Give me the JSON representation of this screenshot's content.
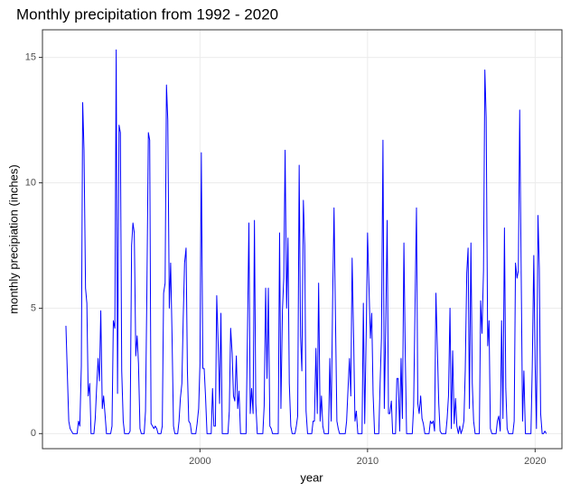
{
  "chart_data": {
    "type": "line",
    "title": "Monthly precipitation from 1992 - 2020",
    "x_label": "year",
    "y_label": "monthly precipiation (inches)",
    "xlim": [
      1990.6,
      2021.6
    ],
    "ylim": [
      -0.6,
      16.1
    ],
    "xticks": [
      2000,
      2010,
      2020
    ],
    "yticks": [
      0,
      5,
      10,
      15
    ],
    "grid": true,
    "x": [
      1992,
      1992.08,
      1992.17,
      1992.25,
      1992.33,
      1992.42,
      1992.5,
      1992.58,
      1992.67,
      1992.75,
      1992.83,
      1992.92,
      1993,
      1993.08,
      1993.17,
      1993.25,
      1993.33,
      1993.42,
      1993.5,
      1993.58,
      1993.67,
      1993.75,
      1993.83,
      1993.92,
      1994,
      1994.08,
      1994.17,
      1994.25,
      1994.33,
      1994.42,
      1994.5,
      1994.58,
      1994.67,
      1994.75,
      1994.83,
      1994.92,
      1995,
      1995.08,
      1995.17,
      1995.25,
      1995.33,
      1995.42,
      1995.5,
      1995.58,
      1995.67,
      1995.75,
      1995.83,
      1995.92,
      1996,
      1996.08,
      1996.17,
      1996.25,
      1996.33,
      1996.42,
      1996.5,
      1996.58,
      1996.67,
      1996.75,
      1996.83,
      1996.92,
      1997,
      1997.08,
      1997.17,
      1997.25,
      1997.33,
      1997.42,
      1997.5,
      1997.58,
      1997.67,
      1997.75,
      1997.83,
      1997.92,
      1998,
      1998.08,
      1998.17,
      1998.25,
      1998.33,
      1998.42,
      1998.5,
      1998.58,
      1998.67,
      1998.75,
      1998.83,
      1998.92,
      1999,
      1999.08,
      1999.17,
      1999.25,
      1999.33,
      1999.42,
      1999.5,
      1999.58,
      1999.67,
      1999.75,
      1999.83,
      1999.92,
      2000,
      2000.08,
      2000.17,
      2000.25,
      2000.33,
      2000.42,
      2000.5,
      2000.58,
      2000.67,
      2000.75,
      2000.83,
      2000.92,
      2001,
      2001.08,
      2001.17,
      2001.25,
      2001.33,
      2001.42,
      2001.5,
      2001.58,
      2001.67,
      2001.75,
      2001.83,
      2001.92,
      2002,
      2002.08,
      2002.17,
      2002.25,
      2002.33,
      2002.42,
      2002.5,
      2002.58,
      2002.67,
      2002.75,
      2002.83,
      2002.92,
      2003,
      2003.08,
      2003.17,
      2003.25,
      2003.33,
      2003.42,
      2003.5,
      2003.58,
      2003.67,
      2003.75,
      2003.83,
      2003.92,
      2004,
      2004.08,
      2004.17,
      2004.25,
      2004.33,
      2004.42,
      2004.5,
      2004.58,
      2004.67,
      2004.75,
      2004.83,
      2004.92,
      2005,
      2005.08,
      2005.17,
      2005.25,
      2005.33,
      2005.42,
      2005.5,
      2005.58,
      2005.67,
      2005.75,
      2005.83,
      2005.92,
      2006,
      2006.08,
      2006.17,
      2006.25,
      2006.33,
      2006.42,
      2006.5,
      2006.58,
      2006.67,
      2006.75,
      2006.83,
      2006.92,
      2007,
      2007.08,
      2007.17,
      2007.25,
      2007.33,
      2007.42,
      2007.5,
      2007.58,
      2007.67,
      2007.75,
      2007.83,
      2007.92,
      2008,
      2008.08,
      2008.17,
      2008.25,
      2008.33,
      2008.42,
      2008.5,
      2008.58,
      2008.67,
      2008.75,
      2008.83,
      2008.92,
      2009,
      2009.08,
      2009.17,
      2009.25,
      2009.33,
      2009.42,
      2009.5,
      2009.58,
      2009.67,
      2009.75,
      2009.83,
      2009.92,
      2010,
      2010.08,
      2010.17,
      2010.25,
      2010.33,
      2010.42,
      2010.5,
      2010.58,
      2010.67,
      2010.75,
      2010.83,
      2010.92,
      2011,
      2011.08,
      2011.17,
      2011.25,
      2011.33,
      2011.42,
      2011.5,
      2011.58,
      2011.67,
      2011.75,
      2011.83,
      2011.92,
      2012,
      2012.08,
      2012.17,
      2012.25,
      2012.33,
      2012.42,
      2012.5,
      2012.58,
      2012.67,
      2012.75,
      2012.83,
      2012.92,
      2013,
      2013.08,
      2013.17,
      2013.25,
      2013.33,
      2013.42,
      2013.5,
      2013.58,
      2013.67,
      2013.75,
      2013.83,
      2013.92,
      2014,
      2014.08,
      2014.17,
      2014.25,
      2014.33,
      2014.42,
      2014.5,
      2014.58,
      2014.67,
      2014.75,
      2014.83,
      2014.92,
      2015,
      2015.08,
      2015.17,
      2015.25,
      2015.33,
      2015.42,
      2015.5,
      2015.58,
      2015.67,
      2015.75,
      2015.83,
      2015.92,
      2016,
      2016.08,
      2016.17,
      2016.25,
      2016.33,
      2016.42,
      2016.5,
      2016.58,
      2016.67,
      2016.75,
      2016.83,
      2016.92,
      2017,
      2017.08,
      2017.17,
      2017.25,
      2017.33,
      2017.42,
      2017.5,
      2017.58,
      2017.67,
      2017.75,
      2017.83,
      2017.92,
      2018,
      2018.08,
      2018.17,
      2018.25,
      2018.33,
      2018.42,
      2018.5,
      2018.58,
      2018.67,
      2018.75,
      2018.83,
      2018.92,
      2019,
      2019.08,
      2019.17,
      2019.25,
      2019.33,
      2019.42,
      2019.5,
      2019.58,
      2019.67,
      2019.75,
      2019.83,
      2019.92,
      2020,
      2020.08,
      2020.17,
      2020.25,
      2020.33,
      2020.42,
      2020.5,
      2020.58,
      2020.67
    ],
    "series": [
      {
        "color": "#0000ff",
        "values": [
          4.3,
          2.5,
          0.5,
          0.2,
          0.1,
          0,
          0,
          0,
          0,
          0.5,
          0.3,
          2.7,
          13.2,
          11.3,
          5.8,
          5.2,
          1.5,
          2.0,
          0,
          0,
          0,
          0.6,
          1.8,
          3.0,
          2.1,
          4.9,
          1.0,
          1.5,
          0.8,
          0,
          0,
          0,
          0,
          0.3,
          4.5,
          4.2,
          15.3,
          1.6,
          12.3,
          12.0,
          2.5,
          0.5,
          0,
          0,
          0,
          0,
          0.1,
          7.5,
          8.4,
          8.0,
          3.1,
          3.9,
          2.8,
          0.2,
          0,
          0,
          0,
          0.9,
          5.6,
          12.0,
          11.7,
          0.4,
          0.3,
          0.2,
          0.3,
          0.2,
          0,
          0,
          0,
          0.3,
          5.6,
          6.0,
          13.9,
          12.5,
          5.0,
          6.8,
          4.0,
          0.3,
          0,
          0,
          0,
          0.5,
          1.4,
          2.0,
          4.6,
          6.8,
          7.4,
          2.5,
          0.5,
          0.4,
          0,
          0,
          0,
          0,
          0.4,
          1.0,
          2.8,
          11.2,
          2.6,
          2.6,
          1.5,
          0,
          0,
          0,
          0,
          1.8,
          0.3,
          0.3,
          5.5,
          3.7,
          1.2,
          4.8,
          0,
          0,
          0,
          0,
          0,
          0.9,
          4.2,
          3.2,
          1.5,
          1.3,
          3.1,
          1.0,
          1.7,
          0,
          0,
          0,
          0,
          0,
          3.8,
          8.4,
          0.8,
          1.8,
          0.8,
          8.5,
          1.2,
          0,
          0,
          0,
          0,
          0,
          1.1,
          5.8,
          2.2,
          5.8,
          0.3,
          0.2,
          0,
          0,
          0,
          0,
          0,
          8.0,
          1.0,
          4.9,
          6.2,
          11.3,
          5.0,
          7.8,
          2.0,
          0.3,
          0,
          0,
          0,
          0.3,
          0.7,
          10.7,
          3.9,
          2.5,
          9.3,
          7.5,
          0.9,
          0,
          0,
          0,
          0,
          0.5,
          0.5,
          3.4,
          0.8,
          6.0,
          0.5,
          1.5,
          0.3,
          0,
          0,
          0,
          0,
          3.0,
          0.5,
          5.5,
          9.0,
          4.9,
          0.5,
          0.2,
          0,
          0,
          0,
          0,
          0,
          0.5,
          1.7,
          3.0,
          1.5,
          7.0,
          3.8,
          0.5,
          0.9,
          0,
          0,
          0,
          0,
          5.2,
          0.4,
          4.0,
          8.0,
          6.0,
          3.8,
          4.8,
          1.6,
          0,
          0,
          0,
          0,
          2.0,
          3.8,
          11.7,
          1.0,
          4.0,
          8.5,
          0.8,
          0.8,
          1.3,
          0,
          0,
          0,
          2.2,
          2.2,
          0.1,
          3.0,
          0.6,
          7.6,
          3.2,
          0,
          0,
          0,
          0,
          0,
          1.1,
          4.9,
          9.0,
          1.2,
          0.8,
          1.5,
          0.6,
          0.4,
          0,
          0,
          0,
          0,
          0.5,
          0.4,
          0.5,
          0.1,
          5.6,
          3.3,
          1.2,
          0.1,
          0,
          0,
          0,
          0,
          0.6,
          1.5,
          5.0,
          0.2,
          3.3,
          0.4,
          1.4,
          0.3,
          0,
          0.3,
          0,
          0.2,
          0.5,
          2.5,
          6.4,
          7.4,
          1.0,
          7.6,
          2.0,
          0.5,
          0,
          0,
          0,
          0,
          5.3,
          4.0,
          6.5,
          14.5,
          12.6,
          3.5,
          4.5,
          0.2,
          0,
          0,
          0,
          0,
          0.5,
          0.7,
          0.1,
          4.5,
          0.6,
          8.2,
          1.8,
          0.2,
          0,
          0,
          0,
          0,
          0.5,
          6.8,
          6.2,
          6.5,
          12.9,
          6.3,
          0.5,
          2.5,
          0,
          0,
          0,
          0,
          0,
          2.7,
          7.1,
          2.8,
          0.2,
          8.7,
          6.6,
          0.8,
          0,
          0,
          0.1,
          0
        ]
      }
    ]
  }
}
